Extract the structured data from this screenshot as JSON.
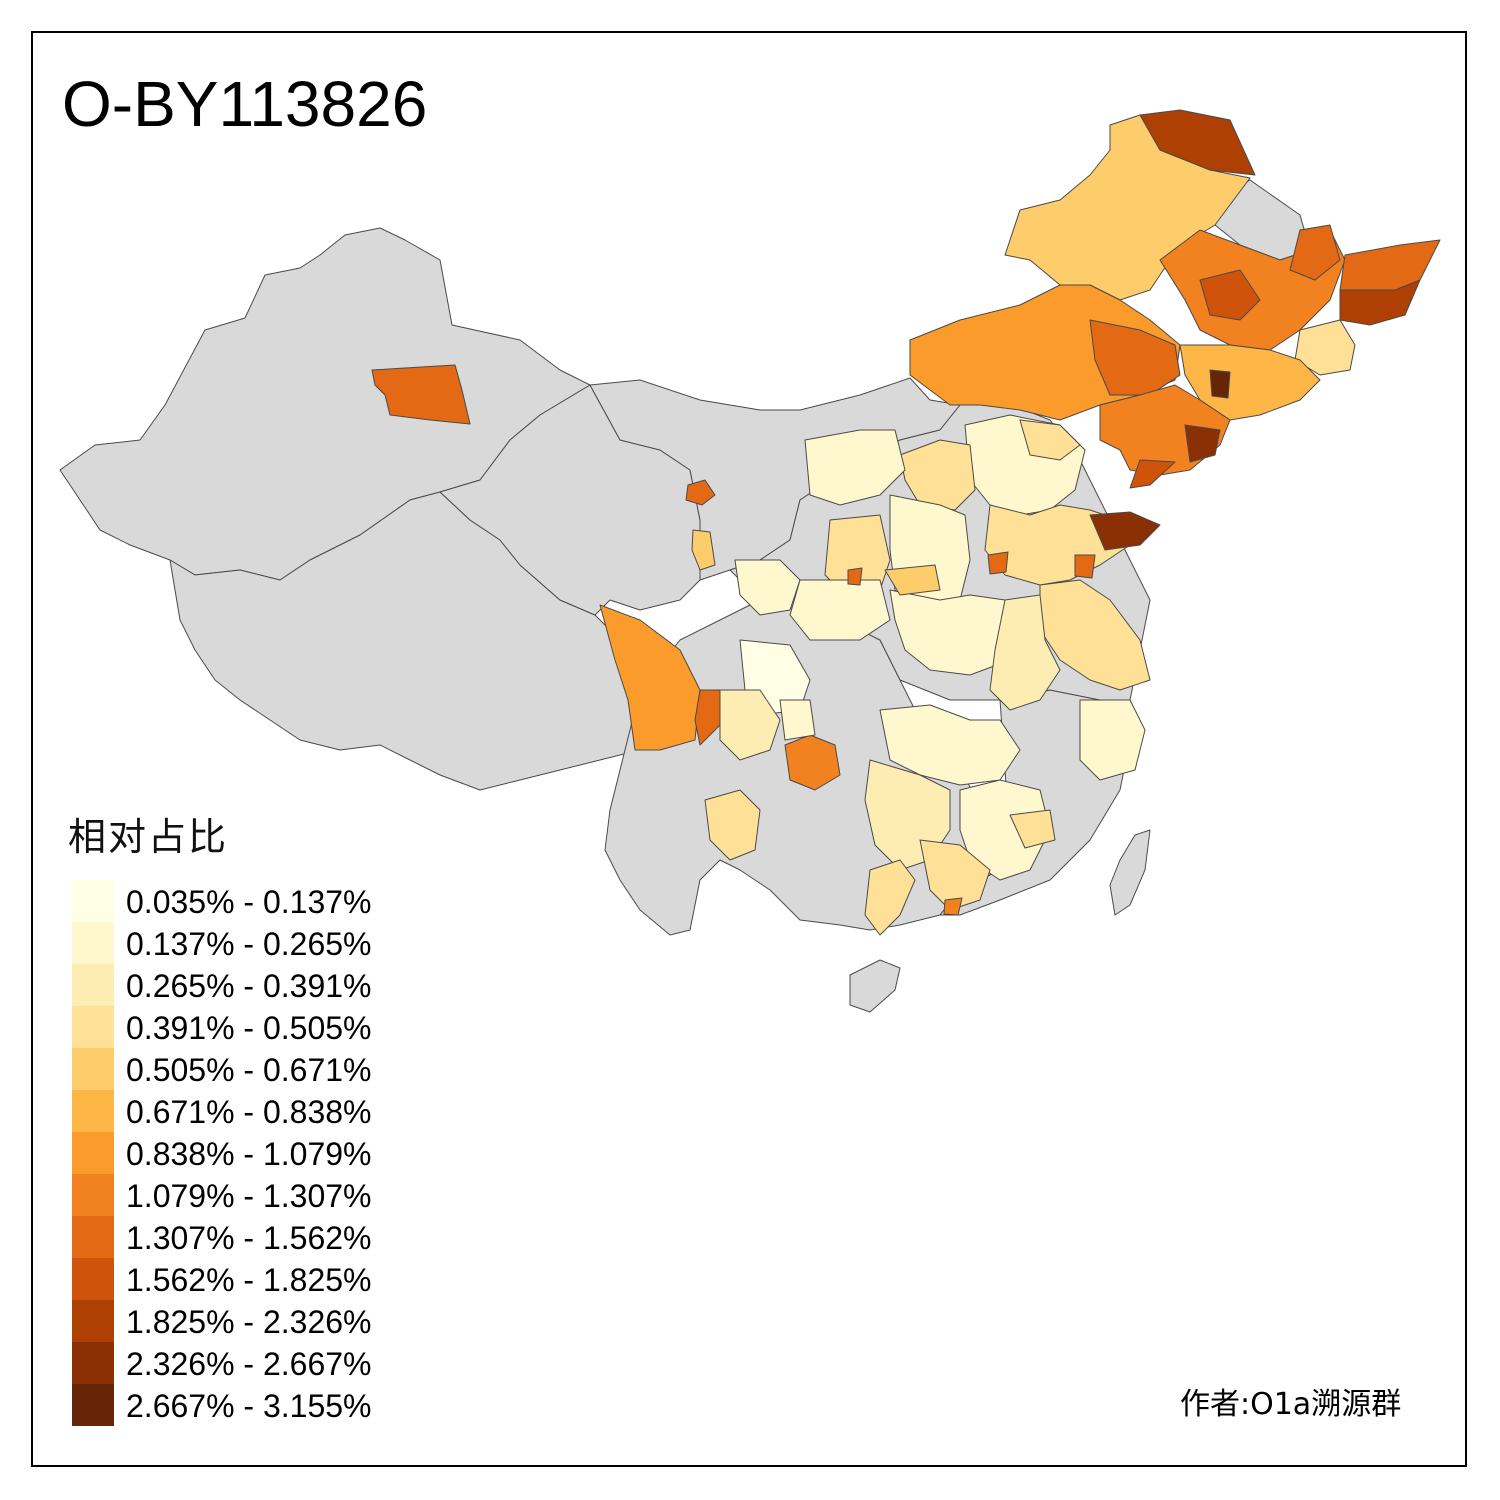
{
  "title": "O-BY113826",
  "legend": {
    "title": "相对占比",
    "items": [
      {
        "label": "0.035% - 0.137%",
        "color": "#FFFFE5"
      },
      {
        "label": "0.137% - 0.265%",
        "color": "#FFF7CE"
      },
      {
        "label": "0.265% - 0.391%",
        "color": "#FEEDB2"
      },
      {
        "label": "0.391% - 0.505%",
        "color": "#FEE196"
      },
      {
        "label": "0.505% - 0.671%",
        "color": "#FECD6B"
      },
      {
        "label": "0.671% - 0.838%",
        "color": "#FEB647"
      },
      {
        "label": "0.838% - 1.079%",
        "color": "#FB9B2B"
      },
      {
        "label": "1.079% - 1.307%",
        "color": "#F28220"
      },
      {
        "label": "1.307% - 1.562%",
        "color": "#E36914"
      },
      {
        "label": "1.562% - 1.825%",
        "color": "#CF530A"
      },
      {
        "label": "1.825% - 2.326%",
        "color": "#AF4004"
      },
      {
        "label": "2.326% - 2.667%",
        "color": "#8B3004"
      },
      {
        "label": "2.667% - 3.155%",
        "color": "#662506"
      }
    ]
  },
  "no_data_color": "#D9D9D9",
  "credit": "作者:O1a溯源群"
}
